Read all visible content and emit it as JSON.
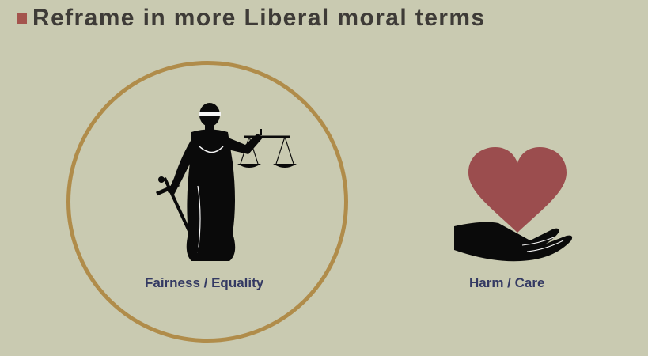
{
  "slide": {
    "title": "Reframe in more Liberal moral terms"
  },
  "items": [
    {
      "label": "Fairness / Equality",
      "icon": "lady-justice-icon"
    },
    {
      "label": "Harm / Care",
      "icon": "heart-in-hand-icon"
    }
  ],
  "colors": {
    "background": "#c9cab1",
    "bullet": "#a4544d",
    "title_text": "#3e3b37",
    "circle_border": "#b08c4a",
    "label_text": "#343a63",
    "heart": "#9b4d4e"
  }
}
